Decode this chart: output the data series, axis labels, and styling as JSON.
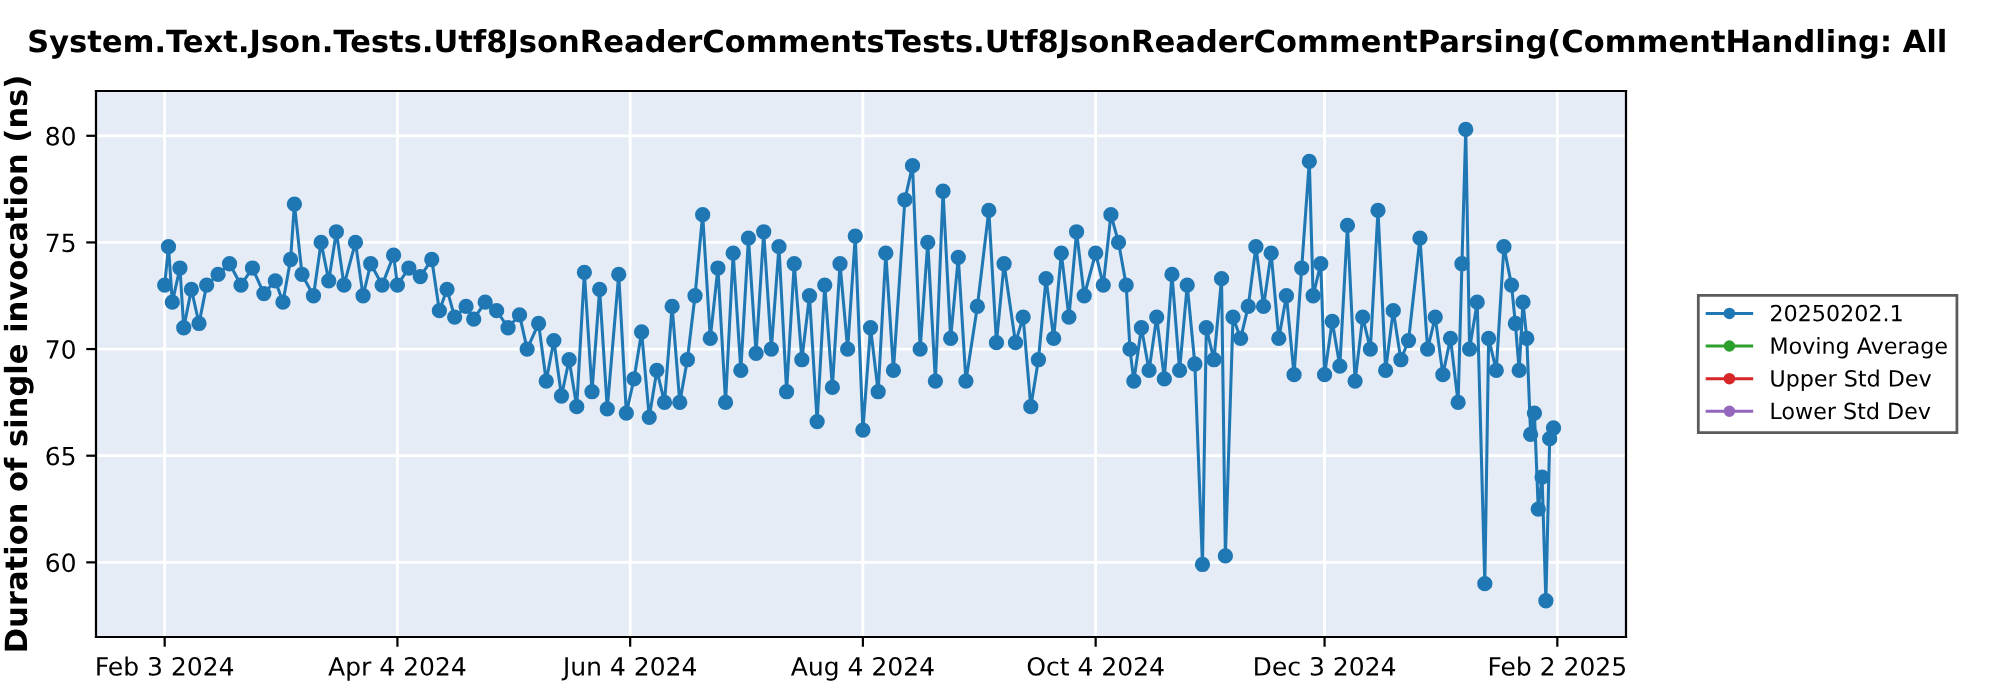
{
  "chart_data": {
    "type": "line",
    "title": "System.Text.Json.Tests.Utf8JsonReaderCommentsTests.Utf8JsonReaderCommentParsing(CommentHandling: All",
    "ylabel": "Duration of single invocation (ns)",
    "xlim": [
      "2024-01-16",
      "2025-02-20"
    ],
    "ylim": [
      56.5,
      82.1
    ],
    "xticks": [
      {
        "value": "2024-02-03",
        "label": "Feb 3 2024"
      },
      {
        "value": "2024-04-04",
        "label": "Apr 4 2024"
      },
      {
        "value": "2024-06-04",
        "label": "Jun 4 2024"
      },
      {
        "value": "2024-08-04",
        "label": "Aug 4 2024"
      },
      {
        "value": "2024-10-04",
        "label": "Oct 4 2024"
      },
      {
        "value": "2024-12-03",
        "label": "Dec 3 2024"
      },
      {
        "value": "2025-02-02",
        "label": "Feb 2 2025"
      }
    ],
    "yticks": [
      60,
      65,
      70,
      75,
      80
    ],
    "grid": true,
    "legend": "right",
    "marker": "circle",
    "line_style": "solid",
    "series": [
      {
        "name": "20250202.1",
        "color": "#1f77b4",
        "x": [
          "2024-02-03",
          "2024-02-04",
          "2024-02-05",
          "2024-02-07",
          "2024-02-08",
          "2024-02-10",
          "2024-02-12",
          "2024-02-14",
          "2024-02-17",
          "2024-02-20",
          "2024-02-23",
          "2024-02-26",
          "2024-02-29",
          "2024-03-03",
          "2024-03-05",
          "2024-03-07",
          "2024-03-08",
          "2024-03-10",
          "2024-03-13",
          "2024-03-15",
          "2024-03-17",
          "2024-03-19",
          "2024-03-21",
          "2024-03-24",
          "2024-03-26",
          "2024-03-28",
          "2024-03-31",
          "2024-04-03",
          "2024-04-04",
          "2024-04-07",
          "2024-04-10",
          "2024-04-13",
          "2024-04-15",
          "2024-04-17",
          "2024-04-19",
          "2024-04-22",
          "2024-04-24",
          "2024-04-27",
          "2024-04-30",
          "2024-05-03",
          "2024-05-06",
          "2024-05-08",
          "2024-05-11",
          "2024-05-13",
          "2024-05-15",
          "2024-05-17",
          "2024-05-19",
          "2024-05-21",
          "2024-05-23",
          "2024-05-25",
          "2024-05-27",
          "2024-05-29",
          "2024-06-01",
          "2024-06-03",
          "2024-06-05",
          "2024-06-07",
          "2024-06-09",
          "2024-06-11",
          "2024-06-13",
          "2024-06-15",
          "2024-06-17",
          "2024-06-19",
          "2024-06-21",
          "2024-06-23",
          "2024-06-25",
          "2024-06-27",
          "2024-06-29",
          "2024-07-01",
          "2024-07-03",
          "2024-07-05",
          "2024-07-07",
          "2024-07-09",
          "2024-07-11",
          "2024-07-13",
          "2024-07-15",
          "2024-07-17",
          "2024-07-19",
          "2024-07-21",
          "2024-07-23",
          "2024-07-25",
          "2024-07-27",
          "2024-07-29",
          "2024-07-31",
          "2024-08-02",
          "2024-08-04",
          "2024-08-06",
          "2024-08-08",
          "2024-08-10",
          "2024-08-12",
          "2024-08-15",
          "2024-08-17",
          "2024-08-19",
          "2024-08-21",
          "2024-08-23",
          "2024-08-25",
          "2024-08-27",
          "2024-08-29",
          "2024-08-31",
          "2024-09-03",
          "2024-09-06",
          "2024-09-08",
          "2024-09-10",
          "2024-09-13",
          "2024-09-15",
          "2024-09-17",
          "2024-09-19",
          "2024-09-21",
          "2024-09-23",
          "2024-09-25",
          "2024-09-27",
          "2024-09-29",
          "2024-10-01",
          "2024-10-04",
          "2024-10-06",
          "2024-10-08",
          "2024-10-10",
          "2024-10-12",
          "2024-10-13",
          "2024-10-14",
          "2024-10-16",
          "2024-10-18",
          "2024-10-20",
          "2024-10-22",
          "2024-10-24",
          "2024-10-26",
          "2024-10-28",
          "2024-10-30",
          "2024-11-01",
          "2024-11-02",
          "2024-11-04",
          "2024-11-06",
          "2024-11-07",
          "2024-11-09",
          "2024-11-11",
          "2024-11-13",
          "2024-11-15",
          "2024-11-17",
          "2024-11-19",
          "2024-11-21",
          "2024-11-23",
          "2024-11-25",
          "2024-11-27",
          "2024-11-29",
          "2024-11-30",
          "2024-12-02",
          "2024-12-03",
          "2024-12-05",
          "2024-12-07",
          "2024-12-09",
          "2024-12-11",
          "2024-12-13",
          "2024-12-15",
          "2024-12-17",
          "2024-12-19",
          "2024-12-21",
          "2024-12-23",
          "2024-12-25",
          "2024-12-28",
          "2024-12-30",
          "2025-01-01",
          "2025-01-03",
          "2025-01-05",
          "2025-01-07",
          "2025-01-08",
          "2025-01-09",
          "2025-01-10",
          "2025-01-12",
          "2025-01-14",
          "2025-01-15",
          "2025-01-17",
          "2025-01-19",
          "2025-01-21",
          "2025-01-22",
          "2025-01-23",
          "2025-01-24",
          "2025-01-25",
          "2025-01-26",
          "2025-01-27",
          "2025-01-28",
          "2025-01-29",
          "2025-01-30",
          "2025-01-31",
          "2025-02-01"
        ],
        "values": [
          73.0,
          74.8,
          72.2,
          73.8,
          71.0,
          72.8,
          71.2,
          73.0,
          73.5,
          74.0,
          73.0,
          73.8,
          72.6,
          73.2,
          72.2,
          74.2,
          76.8,
          73.5,
          72.5,
          75.0,
          73.2,
          75.5,
          73.0,
          75.0,
          72.5,
          74.0,
          73.0,
          74.4,
          73.0,
          73.8,
          73.4,
          74.2,
          71.8,
          72.8,
          71.5,
          72.0,
          71.4,
          72.2,
          71.8,
          71.0,
          71.6,
          70.0,
          71.2,
          68.5,
          70.4,
          67.8,
          69.5,
          67.3,
          73.6,
          68.0,
          72.8,
          67.2,
          73.5,
          67.0,
          68.6,
          70.8,
          66.8,
          69.0,
          67.5,
          72.0,
          67.5,
          69.5,
          72.5,
          76.3,
          70.5,
          73.8,
          67.5,
          74.5,
          69.0,
          75.2,
          69.8,
          75.5,
          70.0,
          74.8,
          68.0,
          74.0,
          69.5,
          72.5,
          66.6,
          73.0,
          68.2,
          74.0,
          70.0,
          75.3,
          66.2,
          71.0,
          68.0,
          74.5,
          69.0,
          77.0,
          78.6,
          70.0,
          75.0,
          68.5,
          77.4,
          70.5,
          74.3,
          68.5,
          72.0,
          76.5,
          70.3,
          74.0,
          70.3,
          71.5,
          67.3,
          69.5,
          73.3,
          70.5,
          74.5,
          71.5,
          75.5,
          72.5,
          74.5,
          73.0,
          76.3,
          75.0,
          73.0,
          70.0,
          68.5,
          71.0,
          69.0,
          71.5,
          68.6,
          73.5,
          69.0,
          73.0,
          69.3,
          59.9,
          71.0,
          69.5,
          73.3,
          60.3,
          71.5,
          70.5,
          72.0,
          74.8,
          72.0,
          74.5,
          70.5,
          72.5,
          68.8,
          73.8,
          78.8,
          72.5,
          74.0,
          68.8,
          71.3,
          69.2,
          75.8,
          68.5,
          71.5,
          70.0,
          76.5,
          69.0,
          71.8,
          69.5,
          70.4,
          75.2,
          70.0,
          71.5,
          68.8,
          70.5,
          67.5,
          74.0,
          80.3,
          70.0,
          72.2,
          59.0,
          70.5,
          69.0,
          74.8,
          73.0,
          71.2,
          69.0,
          72.2,
          70.5,
          66.0,
          67.0,
          62.5,
          64.0,
          58.2,
          65.8,
          66.3
        ]
      },
      {
        "name": "Moving Average",
        "color": "#2ca02c"
      },
      {
        "name": "Upper Std Dev",
        "color": "#d62728"
      },
      {
        "name": "Lower Std Dev",
        "color": "#9467bd"
      }
    ]
  }
}
